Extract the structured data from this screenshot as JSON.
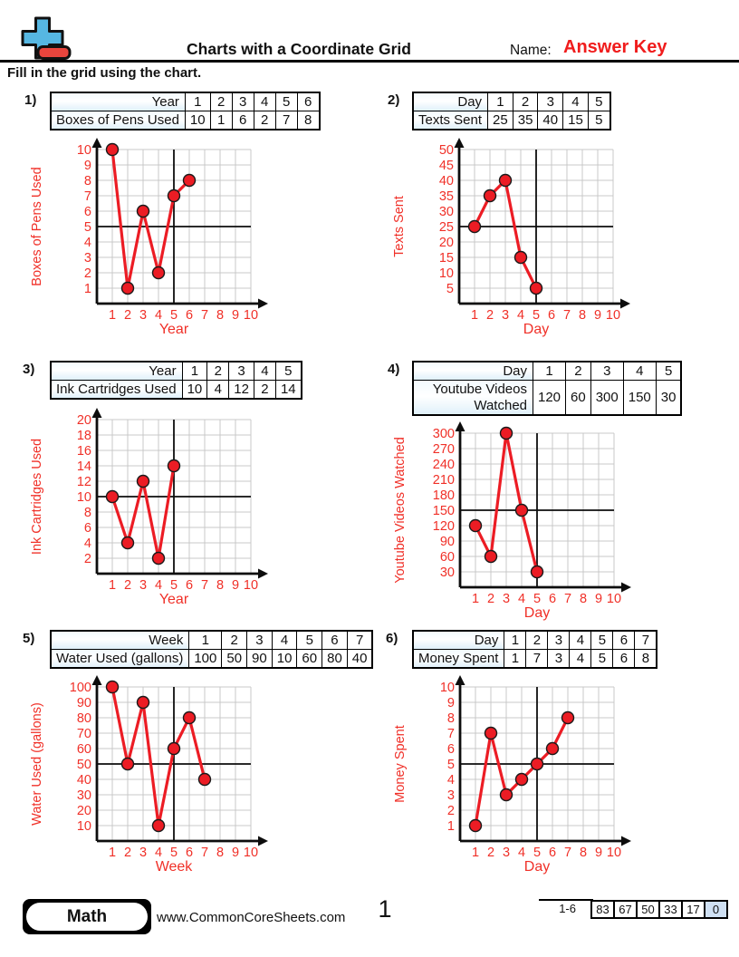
{
  "header": {
    "title": "Charts with a Coordinate Grid",
    "name_label": "Name:",
    "name_value": "Answer Key",
    "instructions": "Fill in the grid using the chart.",
    "logo_icon": "plus-minus-icon"
  },
  "colors": {
    "red_line": "#ec1c24",
    "red_text": "#f03028",
    "grid": "#c8c8c8",
    "axis": "#0d0d0d",
    "logo_blue": "#56b7e2",
    "logo_red": "#e8453d",
    "table_header_bg": "#dff0fa",
    "score_highlight_bg": "#cfe0f3",
    "answer_key_red": "#f01c1c"
  },
  "problems": [
    {
      "number": "1)",
      "row1_label": "Year",
      "row2_label": "Boxes of Pens Used",
      "x_values": [
        "1",
        "2",
        "3",
        "4",
        "5",
        "6"
      ],
      "y_values": [
        "10",
        "1",
        "6",
        "2",
        "7",
        "8"
      ]
    },
    {
      "number": "2)",
      "row1_label": "Day",
      "row2_label": "Texts Sent",
      "x_values": [
        "1",
        "2",
        "3",
        "4",
        "5"
      ],
      "y_values": [
        "25",
        "35",
        "40",
        "15",
        "5"
      ]
    },
    {
      "number": "3)",
      "row1_label": "Year",
      "row2_label": "Ink Cartridges Used",
      "x_values": [
        "1",
        "2",
        "3",
        "4",
        "5"
      ],
      "y_values": [
        "10",
        "4",
        "12",
        "2",
        "14"
      ]
    },
    {
      "number": "4)",
      "row1_label": "Day",
      "row2_label": "Youtube Videos Watched",
      "x_values": [
        "1",
        "2",
        "3",
        "4",
        "5"
      ],
      "y_values": [
        "120",
        "60",
        "300",
        "150",
        "30"
      ]
    },
    {
      "number": "5)",
      "row1_label": "Week",
      "row2_label": "Water Used (gallons)",
      "x_values": [
        "1",
        "2",
        "3",
        "4",
        "5",
        "6",
        "7"
      ],
      "y_values": [
        "100",
        "50",
        "90",
        "10",
        "60",
        "80",
        "40"
      ]
    },
    {
      "number": "6)",
      "row1_label": "Day",
      "row2_label": "Money Spent",
      "x_values": [
        "1",
        "2",
        "3",
        "4",
        "5",
        "6",
        "7"
      ],
      "y_values": [
        "1",
        "7",
        "3",
        "4",
        "5",
        "6",
        "8"
      ]
    }
  ],
  "chart_data": [
    {
      "type": "line",
      "x": [
        1,
        2,
        3,
        4,
        5,
        6
      ],
      "values": [
        10,
        1,
        6,
        2,
        7,
        8
      ],
      "xlabel": "Year",
      "ylabel": "Boxes of Pens Used",
      "x_ticks": [
        1,
        2,
        3,
        4,
        5,
        6,
        7,
        8,
        9,
        10
      ],
      "y_ticks": [
        1,
        2,
        3,
        4,
        5,
        6,
        7,
        8,
        9,
        10
      ],
      "xlim": [
        0,
        10
      ],
      "ylim": [
        0,
        10
      ],
      "grid": true,
      "crosshair": {
        "x": 5,
        "y": 5
      }
    },
    {
      "type": "line",
      "x": [
        1,
        2,
        3,
        4,
        5
      ],
      "values": [
        25,
        35,
        40,
        15,
        5
      ],
      "xlabel": "Day",
      "ylabel": "Texts Sent",
      "x_ticks": [
        1,
        2,
        3,
        4,
        5,
        6,
        7,
        8,
        9,
        10
      ],
      "y_ticks": [
        5,
        10,
        15,
        20,
        25,
        30,
        35,
        40,
        45,
        50
      ],
      "xlim": [
        0,
        10
      ],
      "ylim": [
        0,
        50
      ],
      "grid": true,
      "crosshair": {
        "x": 5,
        "y": 25
      }
    },
    {
      "type": "line",
      "x": [
        1,
        2,
        3,
        4,
        5
      ],
      "values": [
        10,
        4,
        12,
        2,
        14
      ],
      "xlabel": "Year",
      "ylabel": "Ink Cartridges Used",
      "x_ticks": [
        1,
        2,
        3,
        4,
        5,
        6,
        7,
        8,
        9,
        10
      ],
      "y_ticks": [
        2,
        4,
        6,
        8,
        10,
        12,
        14,
        16,
        18,
        20
      ],
      "xlim": [
        0,
        10
      ],
      "ylim": [
        0,
        20
      ],
      "grid": true,
      "crosshair": {
        "x": 5,
        "y": 10
      }
    },
    {
      "type": "line",
      "x": [
        1,
        2,
        3,
        4,
        5
      ],
      "values": [
        120,
        60,
        300,
        150,
        30
      ],
      "xlabel": "Day",
      "ylabel": "Youtube Videos Watched",
      "x_ticks": [
        1,
        2,
        3,
        4,
        5,
        6,
        7,
        8,
        9,
        10
      ],
      "y_ticks": [
        30,
        60,
        90,
        120,
        150,
        180,
        210,
        240,
        270,
        300
      ],
      "xlim": [
        0,
        10
      ],
      "ylim": [
        0,
        300
      ],
      "grid": true,
      "crosshair": {
        "x": 5,
        "y": 150
      }
    },
    {
      "type": "line",
      "x": [
        1,
        2,
        3,
        4,
        5,
        6,
        7
      ],
      "values": [
        100,
        50,
        90,
        10,
        60,
        80,
        40
      ],
      "xlabel": "Week",
      "ylabel": "Water Used (gallons)",
      "x_ticks": [
        1,
        2,
        3,
        4,
        5,
        6,
        7,
        8,
        9,
        10
      ],
      "y_ticks": [
        10,
        20,
        30,
        40,
        50,
        60,
        70,
        80,
        90,
        100
      ],
      "xlim": [
        0,
        10
      ],
      "ylim": [
        0,
        100
      ],
      "grid": true,
      "crosshair": {
        "x": 5,
        "y": 50
      }
    },
    {
      "type": "line",
      "x": [
        1,
        2,
        3,
        4,
        5,
        6,
        7
      ],
      "values": [
        1,
        7,
        3,
        4,
        5,
        6,
        8
      ],
      "xlabel": "Day",
      "ylabel": "Money Spent",
      "x_ticks": [
        1,
        2,
        3,
        4,
        5,
        6,
        7,
        8,
        9,
        10
      ],
      "y_ticks": [
        1,
        2,
        3,
        4,
        5,
        6,
        7,
        8,
        9,
        10
      ],
      "xlim": [
        0,
        10
      ],
      "ylim": [
        0,
        10
      ],
      "grid": true,
      "crosshair": {
        "x": 5,
        "y": 5
      }
    }
  ],
  "footer": {
    "subject": "Math",
    "website": "www.CommonCoreSheets.com",
    "page_number": "1",
    "range_label": "1-6",
    "score_boxes": [
      "83",
      "67",
      "50",
      "33",
      "17",
      "0"
    ]
  }
}
